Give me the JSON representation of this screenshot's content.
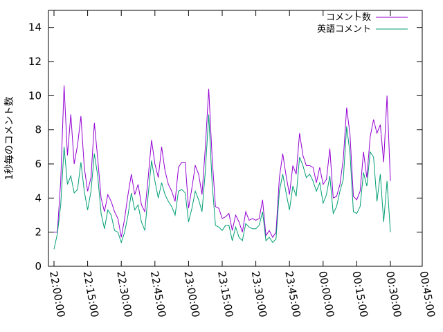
{
  "chart_data": {
    "type": "line",
    "title": "",
    "xlabel": "",
    "ylabel": "1秒毎のコメント数",
    "ylim": [
      0,
      15
    ],
    "yticks": [
      "0",
      "2",
      "4",
      "6",
      "8",
      "10",
      "12",
      "14"
    ],
    "xtick_labels": [
      "22:00:00",
      "22:15:00",
      "22:30:00",
      "22:45:00",
      "23:00:00",
      "23:15:00",
      "23:30:00",
      "23:45:00",
      "00:00:00",
      "00:15:00",
      "00:30:00",
      "00:45:00"
    ],
    "x_start": "22:00:00",
    "x_step_minutes": 1.5,
    "grid": false,
    "legend_position": "top-right",
    "series": [
      {
        "name": "コメント数",
        "color": "#9400d3",
        "values": [
          2.0,
          2.0,
          5.0,
          10.6,
          6.5,
          8.9,
          6.0,
          7.1,
          8.8,
          5.8,
          4.4,
          5.2,
          8.4,
          6.3,
          4.0,
          3.2,
          4.2,
          3.8,
          3.2,
          2.8,
          1.7,
          2.8,
          4.2,
          5.4,
          4.2,
          4.8,
          3.6,
          3.2,
          5.2,
          7.4,
          6.0,
          5.2,
          7.0,
          5.6,
          4.8,
          4.4,
          3.8,
          5.8,
          6.1,
          6.1,
          3.4,
          4.6,
          5.9,
          5.4,
          4.2,
          7.0,
          10.4,
          6.4,
          3.5,
          3.4,
          2.8,
          2.9,
          3.1,
          2.1,
          3.0,
          2.6,
          2.0,
          3.2,
          2.7,
          2.8,
          2.7,
          2.8,
          3.9,
          1.8,
          2.1,
          1.7,
          2.0,
          5.2,
          6.6,
          5.3,
          4.2,
          5.9,
          5.4,
          7.8,
          6.5,
          5.9,
          5.9,
          5.8,
          4.9,
          5.8,
          4.8,
          5.1,
          6.9,
          4.0,
          4.1,
          4.8,
          6.3,
          9.3,
          7.7,
          4.1,
          3.9,
          4.4,
          6.7,
          5.2,
          7.6,
          8.6,
          7.8,
          8.3,
          6.1,
          10.0,
          5.0
        ]
      },
      {
        "name": "英語コメント",
        "color": "#009e73",
        "values": [
          1.0,
          1.9,
          3.6,
          7.0,
          4.8,
          5.3,
          4.3,
          4.5,
          6.1,
          4.4,
          3.3,
          4.4,
          6.6,
          5.3,
          3.1,
          2.2,
          3.3,
          3.0,
          2.1,
          2.0,
          1.4,
          2.0,
          3.0,
          4.3,
          3.3,
          3.6,
          2.6,
          2.1,
          4.2,
          6.2,
          5.0,
          4.0,
          4.9,
          4.2,
          3.8,
          3.5,
          3.0,
          4.4,
          4.5,
          4.3,
          2.6,
          3.4,
          4.4,
          3.9,
          3.2,
          5.6,
          8.9,
          4.9,
          2.4,
          2.3,
          2.1,
          2.4,
          2.4,
          1.5,
          2.3,
          1.7,
          1.5,
          2.5,
          2.3,
          2.2,
          2.2,
          2.4,
          3.2,
          1.5,
          1.7,
          1.4,
          1.6,
          4.4,
          5.4,
          4.3,
          3.3,
          4.7,
          4.1,
          6.4,
          5.9,
          5.2,
          5.4,
          5.0,
          4.4,
          4.9,
          3.7,
          4.2,
          5.3,
          3.1,
          3.5,
          4.4,
          5.1,
          8.2,
          6.6,
          3.2,
          3.1,
          3.5,
          5.5,
          4.7,
          6.7,
          6.4,
          3.8,
          5.4,
          2.6,
          5.0,
          2.0
        ]
      }
    ]
  }
}
